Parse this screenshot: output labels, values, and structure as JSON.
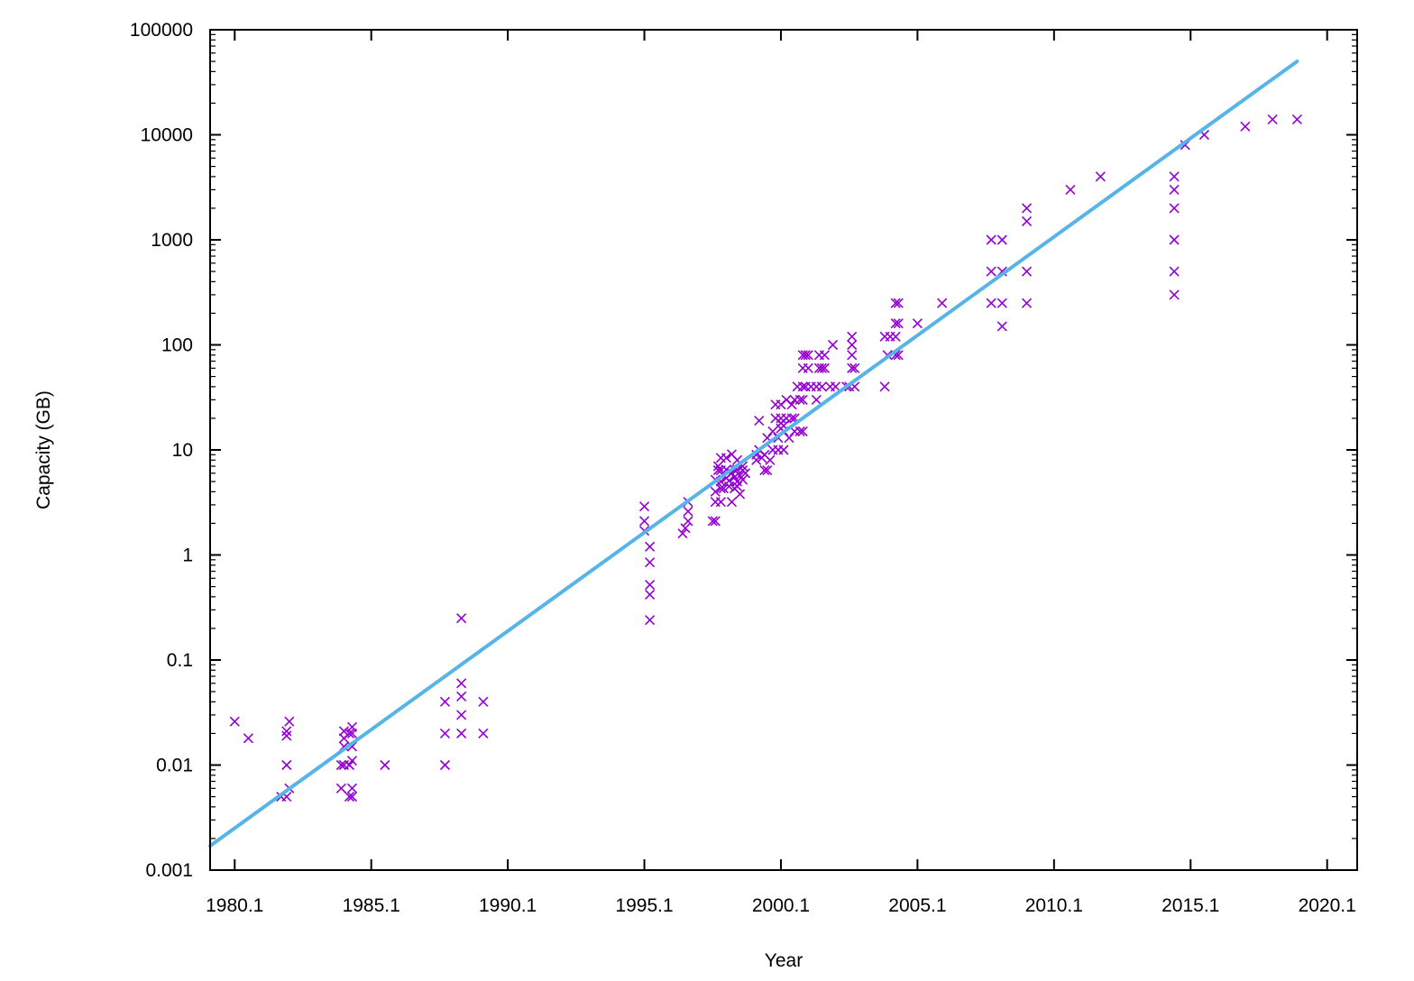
{
  "chart_data": {
    "type": "scatter",
    "title": "",
    "xlabel": "Year",
    "ylabel": "Capacity (GB)",
    "xlim": [
      1979.2,
      2021.2
    ],
    "ylim": [
      0.001,
      100000
    ],
    "y_scale": "log",
    "grid": false,
    "legend": "none",
    "x_ticks": [
      1980.1,
      1985.1,
      1990.1,
      1995.1,
      2000.1,
      2005.1,
      2010.1,
      2015.1,
      2020.1
    ],
    "x_tick_labels": [
      "1980.1",
      "1985.1",
      "1990.1",
      "1995.1",
      "2000.1",
      "2005.1",
      "2010.1",
      "2015.1",
      "2020.1"
    ],
    "y_ticks": [
      0.001,
      0.01,
      0.1,
      1,
      10,
      100,
      1000,
      10000,
      100000
    ],
    "y_tick_labels": [
      "0.001",
      "0.01",
      "0.1",
      "1",
      "10",
      "100",
      "1000",
      "10000",
      "100000"
    ],
    "colors": {
      "points": "#9400d3",
      "fit_line": "#56b4e9"
    },
    "series": [
      {
        "type": "scatter",
        "marker": "x",
        "points": [
          [
            1980.1,
            0.026
          ],
          [
            1980.6,
            0.018
          ],
          [
            1981.8,
            0.005
          ],
          [
            1982.0,
            0.005
          ],
          [
            1982.0,
            0.01
          ],
          [
            1982.0,
            0.019
          ],
          [
            1982.1,
            0.026
          ],
          [
            1982.1,
            0.006
          ],
          [
            1982.0,
            0.021
          ],
          [
            1984.0,
            0.006
          ],
          [
            1984.0,
            0.01
          ],
          [
            1984.1,
            0.01
          ],
          [
            1984.1,
            0.015
          ],
          [
            1984.1,
            0.018
          ],
          [
            1984.1,
            0.021
          ],
          [
            1984.3,
            0.005
          ],
          [
            1984.3,
            0.01
          ],
          [
            1984.4,
            0.005
          ],
          [
            1984.4,
            0.006
          ],
          [
            1984.4,
            0.011
          ],
          [
            1984.4,
            0.015
          ],
          [
            1984.4,
            0.02
          ],
          [
            1984.4,
            0.023
          ],
          [
            1984.3,
            0.02
          ],
          [
            1985.6,
            0.01
          ],
          [
            1987.8,
            0.01
          ],
          [
            1987.8,
            0.02
          ],
          [
            1987.8,
            0.04
          ],
          [
            1988.4,
            0.02
          ],
          [
            1988.4,
            0.03
          ],
          [
            1988.4,
            0.045
          ],
          [
            1988.4,
            0.06
          ],
          [
            1988.4,
            0.25
          ],
          [
            1989.2,
            0.02
          ],
          [
            1989.2,
            0.04
          ],
          [
            1995.1,
            1.7
          ],
          [
            1995.1,
            2.1
          ],
          [
            1995.1,
            2.9
          ],
          [
            1995.3,
            0.24
          ],
          [
            1995.3,
            0.42
          ],
          [
            1995.3,
            0.52
          ],
          [
            1995.3,
            0.85
          ],
          [
            1995.3,
            1.2
          ],
          [
            1996.5,
            1.6
          ],
          [
            1996.6,
            1.8
          ],
          [
            1996.7,
            2.1
          ],
          [
            1996.7,
            2.6
          ],
          [
            1996.7,
            3.2
          ],
          [
            1997.6,
            2.1
          ],
          [
            1997.7,
            2.1
          ],
          [
            1997.7,
            3.2
          ],
          [
            1997.7,
            4.0
          ],
          [
            1997.7,
            5.2
          ],
          [
            1997.8,
            6.4
          ],
          [
            1997.8,
            7.0
          ],
          [
            1997.9,
            3.2
          ],
          [
            1997.9,
            4.3
          ],
          [
            1997.9,
            5.0
          ],
          [
            1997.9,
            6.4
          ],
          [
            1997.9,
            8.4
          ],
          [
            1998.0,
            4.3
          ],
          [
            1998.1,
            5.4
          ],
          [
            1998.1,
            6.5
          ],
          [
            1998.1,
            8.4
          ],
          [
            1998.2,
            4.5
          ],
          [
            1998.2,
            5.1
          ],
          [
            1998.3,
            3.2
          ],
          [
            1998.3,
            6.0
          ],
          [
            1998.3,
            9.1
          ],
          [
            1998.4,
            4.3
          ],
          [
            1998.4,
            5.5
          ],
          [
            1998.4,
            6.5
          ],
          [
            1998.5,
            4.5
          ],
          [
            1998.5,
            5.0
          ],
          [
            1998.5,
            6.5
          ],
          [
            1998.5,
            8.0
          ],
          [
            1998.6,
            3.8
          ],
          [
            1998.6,
            5.7
          ],
          [
            1998.7,
            5.2
          ],
          [
            1998.7,
            6.4
          ],
          [
            1998.7,
            7.0
          ],
          [
            1998.8,
            6.0
          ],
          [
            1999.2,
            8.0
          ],
          [
            1999.2,
            9.0
          ],
          [
            1999.3,
            10.0
          ],
          [
            1999.3,
            19.0
          ],
          [
            1999.4,
            8.4
          ],
          [
            1999.5,
            6.4
          ],
          [
            1999.5,
            9.0
          ],
          [
            1999.6,
            6.4
          ],
          [
            1999.6,
            13.0
          ],
          [
            1999.7,
            8.0
          ],
          [
            1999.8,
            10.0
          ],
          [
            1999.8,
            15.0
          ],
          [
            1999.9,
            20.0
          ],
          [
            1999.9,
            27.0
          ],
          [
            2000.0,
            10.0
          ],
          [
            2000.0,
            13.0
          ],
          [
            2000.1,
            16.0
          ],
          [
            2000.1,
            18.0
          ],
          [
            2000.1,
            20.0
          ],
          [
            2000.1,
            27.0
          ],
          [
            2000.2,
            10.0
          ],
          [
            2000.2,
            15.0
          ],
          [
            2000.2,
            17.0
          ],
          [
            2000.3,
            20.0
          ],
          [
            2000.3,
            30.0
          ],
          [
            2000.4,
            13.0
          ],
          [
            2000.5,
            20.0
          ],
          [
            2000.5,
            27.0
          ],
          [
            2000.6,
            15.0
          ],
          [
            2000.6,
            20.0
          ],
          [
            2000.6,
            30.0
          ],
          [
            2000.7,
            40.0
          ],
          [
            2000.8,
            15.0
          ],
          [
            2000.8,
            30.0
          ],
          [
            2000.9,
            15.0
          ],
          [
            2000.9,
            30.0
          ],
          [
            2000.9,
            40.0
          ],
          [
            2000.9,
            60.0
          ],
          [
            2000.9,
            80.0
          ],
          [
            2001.0,
            40.0
          ],
          [
            2001.0,
            80.0
          ],
          [
            2001.1,
            60.0
          ],
          [
            2001.1,
            80.0
          ],
          [
            2001.2,
            40.0
          ],
          [
            2001.4,
            30.0
          ],
          [
            2001.4,
            40.0
          ],
          [
            2001.5,
            60.0
          ],
          [
            2001.5,
            80.0
          ],
          [
            2001.6,
            40.0
          ],
          [
            2001.6,
            60.0
          ],
          [
            2001.7,
            60.0
          ],
          [
            2001.7,
            80.0
          ],
          [
            2001.9,
            40.0
          ],
          [
            2002.0,
            100.0
          ],
          [
            2002.1,
            40.0
          ],
          [
            2002.5,
            40.0
          ],
          [
            2002.6,
            40.0
          ],
          [
            2002.7,
            60.0
          ],
          [
            2002.7,
            80.0
          ],
          [
            2002.7,
            100.0
          ],
          [
            2002.7,
            120.0
          ],
          [
            2002.8,
            40.0
          ],
          [
            2002.8,
            60.0
          ],
          [
            2003.9,
            40.0
          ],
          [
            2003.9,
            120.0
          ],
          [
            2004.0,
            80.0
          ],
          [
            2004.1,
            120.0
          ],
          [
            2004.3,
            80.0
          ],
          [
            2004.3,
            120.0
          ],
          [
            2004.3,
            160.0
          ],
          [
            2004.4,
            250.0
          ],
          [
            2004.3,
            250.0
          ],
          [
            2004.4,
            160.0
          ],
          [
            2004.4,
            80.0
          ],
          [
            2005.1,
            160.0
          ],
          [
            2006.0,
            250.0
          ],
          [
            2007.8,
            250.0
          ],
          [
            2007.8,
            500.0
          ],
          [
            2007.8,
            1000.0
          ],
          [
            2008.2,
            150.0
          ],
          [
            2008.2,
            250.0
          ],
          [
            2008.2,
            500.0
          ],
          [
            2008.2,
            1000.0
          ],
          [
            2009.1,
            250.0
          ],
          [
            2009.1,
            500.0
          ],
          [
            2009.1,
            1500.0
          ],
          [
            2009.1,
            2000.0
          ],
          [
            2010.7,
            3000.0
          ],
          [
            2011.8,
            4000.0
          ],
          [
            2014.5,
            300.0
          ],
          [
            2014.5,
            500.0
          ],
          [
            2014.5,
            1000.0
          ],
          [
            2014.5,
            2000.0
          ],
          [
            2014.5,
            3000.0
          ],
          [
            2014.5,
            4000.0
          ],
          [
            2014.9,
            8000.0
          ],
          [
            2015.6,
            10000.0
          ],
          [
            2017.1,
            12000.0
          ],
          [
            2018.1,
            14000.0
          ],
          [
            2019.0,
            14000.0
          ]
        ]
      },
      {
        "type": "line",
        "points": [
          [
            1979.2,
            0.0017
          ],
          [
            2019.0,
            50000.0
          ]
        ]
      }
    ]
  }
}
